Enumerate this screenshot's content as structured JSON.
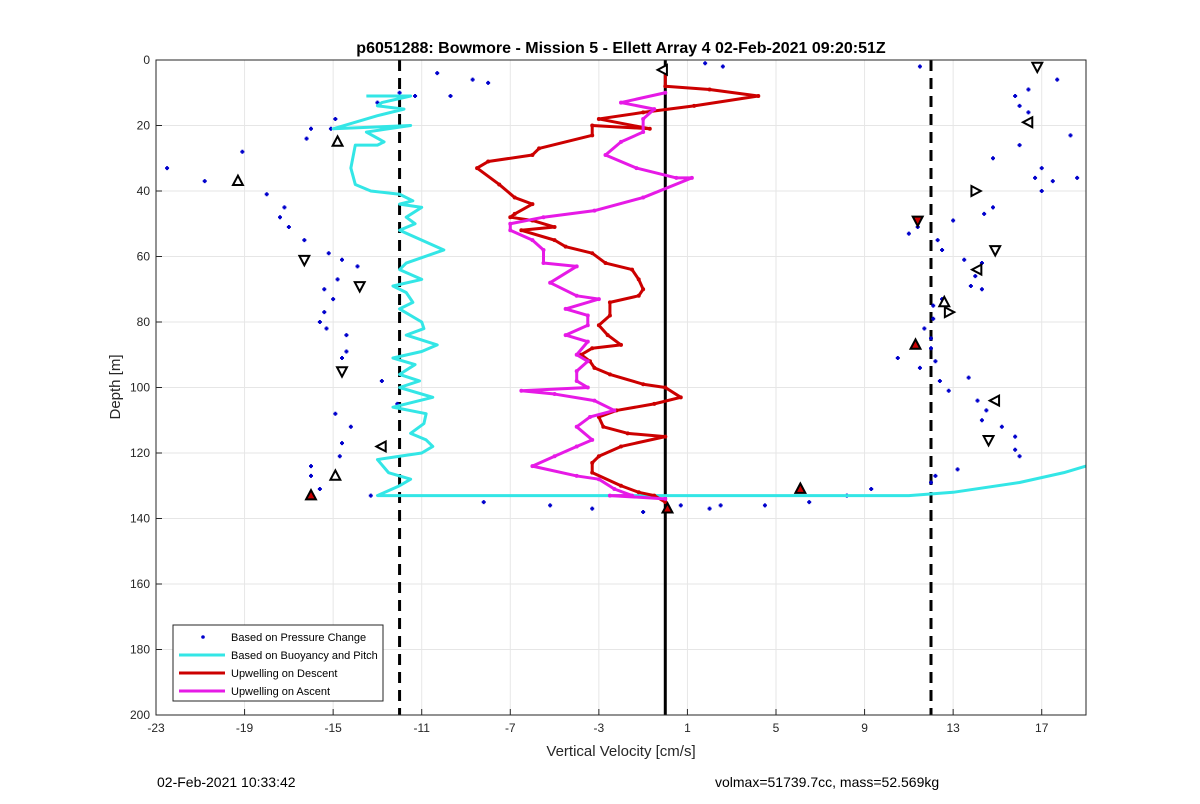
{
  "footer": {
    "timestamp": "02-Feb-2021 10:33:42",
    "info": "volmax=51739.7cc, mass=52.569kg"
  },
  "chart_data": {
    "type": "scatter",
    "title": "p6051288: Bowmore - Mission 5 - Ellett Array 4 02-Feb-2021 09:20:51Z",
    "xlabel": "Vertical Velocity [cm/s]",
    "ylabel": "Depth [m]",
    "xlim": [
      -23,
      19
    ],
    "ylim": [
      0,
      200
    ],
    "y_reversed": true,
    "x_ticks": [
      -23,
      -19,
      -15,
      -11,
      -7,
      -3,
      1,
      5,
      9,
      13,
      17
    ],
    "y_ticks": [
      0,
      20,
      40,
      60,
      80,
      100,
      120,
      140,
      160,
      180,
      200
    ],
    "grid": true,
    "legend_position": "bottom-left",
    "reference_lines": [
      {
        "x": -12,
        "style": "dashed",
        "color": "#000000"
      },
      {
        "x": 0,
        "style": "solid",
        "color": "#000000"
      },
      {
        "x": 12,
        "style": "dashed",
        "color": "#000000"
      }
    ],
    "series": [
      {
        "name": "Based on Pressure Change",
        "style": "dots",
        "color": "#0000cc",
        "points": [
          [
            -10.3,
            4
          ],
          [
            -9.7,
            11
          ],
          [
            -8.7,
            6
          ],
          [
            -8.0,
            7
          ],
          [
            -11.3,
            11
          ],
          [
            -12.0,
            10
          ],
          [
            -13.0,
            13
          ],
          [
            -14.9,
            18
          ],
          [
            -15.1,
            21
          ],
          [
            -16.0,
            21
          ],
          [
            -16.2,
            24
          ],
          [
            -19.1,
            28
          ],
          [
            -20.8,
            37
          ],
          [
            -22.5,
            33
          ],
          [
            -18.0,
            41
          ],
          [
            -17.2,
            45
          ],
          [
            -17.4,
            48
          ],
          [
            -17.0,
            51
          ],
          [
            -16.3,
            55
          ],
          [
            -15.2,
            59
          ],
          [
            -14.6,
            61
          ],
          [
            -13.9,
            63
          ],
          [
            -14.8,
            67
          ],
          [
            -15.4,
            70
          ],
          [
            -15.0,
            73
          ],
          [
            -15.4,
            77
          ],
          [
            -15.6,
            80
          ],
          [
            -15.3,
            82
          ],
          [
            -14.4,
            84
          ],
          [
            -14.4,
            89
          ],
          [
            -14.6,
            91
          ],
          [
            -12.8,
            98
          ],
          [
            -12.1,
            105
          ],
          [
            -14.9,
            108
          ],
          [
            -14.2,
            112
          ],
          [
            -14.6,
            117
          ],
          [
            -14.7,
            121
          ],
          [
            -16.0,
            124
          ],
          [
            -16.0,
            127
          ],
          [
            -15.6,
            131
          ],
          [
            -13.3,
            133
          ],
          [
            -8.2,
            135
          ],
          [
            -5.2,
            136
          ],
          [
            -3.3,
            137
          ],
          [
            -1.0,
            138
          ],
          [
            0.7,
            136
          ],
          [
            2.0,
            137
          ],
          [
            2.5,
            136
          ],
          [
            4.5,
            136
          ],
          [
            6.5,
            135
          ],
          [
            8.2,
            133
          ],
          [
            9.3,
            131
          ],
          [
            11.5,
            2
          ],
          [
            1.8,
            1
          ],
          [
            2.6,
            2
          ],
          [
            11.0,
            53
          ],
          [
            11.4,
            51
          ],
          [
            12.3,
            55
          ],
          [
            13.0,
            49
          ],
          [
            12.5,
            58
          ],
          [
            13.5,
            61
          ],
          [
            14.3,
            62
          ],
          [
            14.0,
            66
          ],
          [
            13.8,
            69
          ],
          [
            14.3,
            70
          ],
          [
            12.5,
            73
          ],
          [
            12.1,
            75
          ],
          [
            12.1,
            79
          ],
          [
            11.7,
            82
          ],
          [
            12.0,
            85
          ],
          [
            12.0,
            88
          ],
          [
            12.2,
            92
          ],
          [
            10.5,
            91
          ],
          [
            11.5,
            94
          ],
          [
            12.4,
            98
          ],
          [
            13.7,
            97
          ],
          [
            12.8,
            101
          ],
          [
            14.1,
            104
          ],
          [
            14.5,
            107
          ],
          [
            14.3,
            110
          ],
          [
            15.2,
            112
          ],
          [
            15.8,
            115
          ],
          [
            15.8,
            119
          ],
          [
            16.0,
            121
          ],
          [
            12.2,
            127
          ],
          [
            12.0,
            129
          ],
          [
            13.2,
            125
          ],
          [
            15.8,
            11
          ],
          [
            16.4,
            9
          ],
          [
            16.0,
            14
          ],
          [
            16.4,
            16
          ],
          [
            17.7,
            6
          ],
          [
            18.3,
            23
          ],
          [
            14.8,
            30
          ],
          [
            16.0,
            26
          ],
          [
            17.0,
            33
          ],
          [
            16.7,
            36
          ],
          [
            18.6,
            36
          ],
          [
            17.0,
            40
          ],
          [
            14.8,
            45
          ],
          [
            14.4,
            47
          ],
          [
            17.5,
            37
          ]
        ]
      },
      {
        "name": "Based on Buoyancy and Pitch",
        "style": "line",
        "color": "#33e6e6",
        "points": [
          [
            -13.5,
            11
          ],
          [
            -11.5,
            11
          ],
          [
            -12.8,
            13
          ],
          [
            -13.0,
            14
          ],
          [
            -11.8,
            15
          ],
          [
            -13.0,
            17
          ],
          [
            -15.0,
            21
          ],
          [
            -11.5,
            20
          ],
          [
            -13.5,
            22
          ],
          [
            -12.7,
            25
          ],
          [
            -13.0,
            26
          ],
          [
            -14.0,
            26
          ],
          [
            -14.2,
            33
          ],
          [
            -14.0,
            38
          ],
          [
            -13.3,
            40
          ],
          [
            -12.0,
            41
          ],
          [
            -11.4,
            43
          ],
          [
            -12.0,
            44
          ],
          [
            -11.0,
            45
          ],
          [
            -11.7,
            48
          ],
          [
            -11.3,
            50
          ],
          [
            -12.0,
            52
          ],
          [
            -11.0,
            55
          ],
          [
            -10.0,
            58
          ],
          [
            -11.7,
            62
          ],
          [
            -12.0,
            64
          ],
          [
            -11.0,
            67
          ],
          [
            -12.3,
            69
          ],
          [
            -11.7,
            71
          ],
          [
            -11.4,
            74
          ],
          [
            -12.0,
            76
          ],
          [
            -11.0,
            80
          ],
          [
            -10.9,
            82
          ],
          [
            -11.7,
            84
          ],
          [
            -10.3,
            87
          ],
          [
            -11.0,
            89
          ],
          [
            -12.3,
            91
          ],
          [
            -11.3,
            93
          ],
          [
            -12.0,
            96
          ],
          [
            -11.1,
            98
          ],
          [
            -12.0,
            100
          ],
          [
            -10.5,
            103
          ],
          [
            -12.3,
            106
          ],
          [
            -10.8,
            108
          ],
          [
            -10.9,
            111
          ],
          [
            -11.5,
            114
          ],
          [
            -10.8,
            116
          ],
          [
            -10.5,
            118
          ],
          [
            -11.0,
            120
          ],
          [
            -12.0,
            121
          ],
          [
            -13.0,
            122
          ],
          [
            -12.5,
            126
          ],
          [
            -11.5,
            128
          ],
          [
            -12.0,
            130
          ],
          [
            -13.0,
            133
          ],
          [
            -11.0,
            133
          ],
          [
            -8.0,
            133
          ],
          [
            -4.0,
            133
          ],
          [
            0.0,
            133
          ],
          [
            5.0,
            133
          ],
          [
            9.0,
            133
          ],
          [
            11.0,
            133
          ],
          [
            13.0,
            132
          ],
          [
            16.0,
            129
          ],
          [
            18.0,
            126
          ],
          [
            19.0,
            124
          ]
        ]
      },
      {
        "name": "Upwelling on Descent",
        "style": "line",
        "color": "#cc0000",
        "points": [
          [
            0.0,
            3
          ],
          [
            0.0,
            8
          ],
          [
            2.0,
            9
          ],
          [
            4.2,
            11
          ],
          [
            1.3,
            14
          ],
          [
            -1.0,
            16
          ],
          [
            -3.0,
            18
          ],
          [
            -0.7,
            21
          ],
          [
            -3.3,
            20
          ],
          [
            -3.3,
            23
          ],
          [
            -5.7,
            27
          ],
          [
            -6.0,
            29
          ],
          [
            -8.0,
            31
          ],
          [
            -8.5,
            33
          ],
          [
            -7.5,
            38
          ],
          [
            -6.8,
            42
          ],
          [
            -6.0,
            44
          ],
          [
            -6.8,
            47
          ],
          [
            -7.0,
            48
          ],
          [
            -6.0,
            49
          ],
          [
            -5.0,
            51
          ],
          [
            -6.5,
            52
          ],
          [
            -5.0,
            55
          ],
          [
            -4.5,
            57
          ],
          [
            -3.3,
            59
          ],
          [
            -2.7,
            62
          ],
          [
            -1.5,
            64
          ],
          [
            -1.2,
            67
          ],
          [
            -1.0,
            70
          ],
          [
            -1.2,
            72
          ],
          [
            -2.5,
            74
          ],
          [
            -2.5,
            78
          ],
          [
            -3.0,
            81
          ],
          [
            -2.6,
            84
          ],
          [
            -2.0,
            87
          ],
          [
            -3.3,
            88
          ],
          [
            -3.8,
            90
          ],
          [
            -3.4,
            92
          ],
          [
            -3.2,
            94
          ],
          [
            -2.5,
            96
          ],
          [
            -1.0,
            99
          ],
          [
            0.0,
            100
          ],
          [
            0.7,
            103
          ],
          [
            -0.5,
            105
          ],
          [
            -2.2,
            107
          ],
          [
            -3.0,
            109
          ],
          [
            -2.8,
            112
          ],
          [
            -1.7,
            114
          ],
          [
            0.0,
            115
          ],
          [
            -2.0,
            118
          ],
          [
            -3.0,
            121
          ],
          [
            -3.3,
            123
          ],
          [
            -3.3,
            126
          ],
          [
            -2.0,
            130
          ],
          [
            -1.2,
            132
          ],
          [
            -0.5,
            133
          ],
          [
            0.0,
            135
          ]
        ]
      },
      {
        "name": "Upwelling on Ascent",
        "style": "line",
        "color": "#e61ae6",
        "points": [
          [
            0.0,
            10
          ],
          [
            -2.0,
            13
          ],
          [
            -0.5,
            15
          ],
          [
            -1.0,
            18
          ],
          [
            -1.0,
            22
          ],
          [
            -2.0,
            25
          ],
          [
            -2.7,
            29
          ],
          [
            -1.3,
            33
          ],
          [
            0.5,
            36
          ],
          [
            1.2,
            36
          ],
          [
            -1.0,
            42
          ],
          [
            -3.2,
            46
          ],
          [
            -5.5,
            48
          ],
          [
            -7.0,
            50
          ],
          [
            -7.0,
            52
          ],
          [
            -6.0,
            55
          ],
          [
            -5.5,
            58
          ],
          [
            -5.5,
            62
          ],
          [
            -4.0,
            63
          ],
          [
            -5.2,
            68
          ],
          [
            -4.0,
            72
          ],
          [
            -3.0,
            73
          ],
          [
            -4.5,
            76
          ],
          [
            -3.5,
            78
          ],
          [
            -3.5,
            81
          ],
          [
            -4.5,
            84
          ],
          [
            -3.5,
            86
          ],
          [
            -4.0,
            90
          ],
          [
            -3.5,
            92
          ],
          [
            -4.0,
            95
          ],
          [
            -4.0,
            98
          ],
          [
            -3.5,
            100
          ],
          [
            -6.5,
            101
          ],
          [
            -5.0,
            102
          ],
          [
            -3.2,
            104
          ],
          [
            -2.3,
            107
          ],
          [
            -3.4,
            109
          ],
          [
            -4.0,
            112
          ],
          [
            -3.3,
            116
          ],
          [
            -4.0,
            118
          ],
          [
            -5.0,
            121
          ],
          [
            -6.0,
            124
          ],
          [
            -4.0,
            127
          ],
          [
            -3.0,
            128
          ],
          [
            -2.3,
            131
          ],
          [
            -1.5,
            133
          ],
          [
            -2.5,
            133
          ],
          [
            0.0,
            134
          ]
        ]
      },
      {
        "name": "",
        "style": "triangles",
        "color": "#000000",
        "points": [
          [
            -0.1,
            3,
            "left",
            false
          ],
          [
            -14.8,
            25,
            "up",
            false
          ],
          [
            -19.3,
            37,
            "up",
            false
          ],
          [
            -16.3,
            61,
            "down",
            false
          ],
          [
            -13.8,
            69,
            "down",
            false
          ],
          [
            -14.6,
            95,
            "down",
            false
          ],
          [
            -12.8,
            118,
            "left",
            false
          ],
          [
            -14.9,
            127,
            "up",
            false
          ],
          [
            -16.0,
            133,
            "up",
            true
          ],
          [
            6.1,
            131,
            "up",
            true
          ],
          [
            0.1,
            137,
            "up",
            true
          ],
          [
            11.4,
            49,
            "down",
            true
          ],
          [
            11.3,
            87,
            "up",
            true
          ],
          [
            16.8,
            2,
            "down",
            false
          ],
          [
            16.4,
            19,
            "left",
            false
          ],
          [
            14.0,
            40,
            "right",
            false
          ],
          [
            14.9,
            58,
            "down",
            false
          ],
          [
            14.1,
            64,
            "left",
            false
          ],
          [
            12.6,
            74,
            "up",
            false
          ],
          [
            12.8,
            77,
            "right",
            false
          ],
          [
            14.9,
            104,
            "left",
            false
          ],
          [
            14.6,
            116,
            "down",
            false
          ]
        ]
      }
    ]
  }
}
